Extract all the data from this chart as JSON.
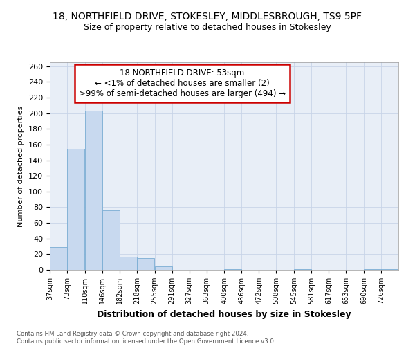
{
  "title_line1": "18, NORTHFIELD DRIVE, STOKESLEY, MIDDLESBROUGH, TS9 5PF",
  "title_line2": "Size of property relative to detached houses in Stokesley",
  "xlabel": "Distribution of detached houses by size in Stokesley",
  "ylabel": "Number of detached properties",
  "footnote": "Contains HM Land Registry data © Crown copyright and database right 2024.\nContains public sector information licensed under the Open Government Licence v3.0.",
  "annotation_line1": "18 NORTHFIELD DRIVE: 53sqm",
  "annotation_line2": "← <1% of detached houses are smaller (2)",
  "annotation_line3": ">99% of semi-detached houses are larger (494) →",
  "bar_color": "#c8d9ef",
  "bar_edge_color": "#7aadd4",
  "annotation_box_color": "#ffffff",
  "annotation_box_edge": "#cc0000",
  "bins": [
    37,
    73,
    110,
    146,
    182,
    218,
    255,
    291,
    327,
    363,
    400,
    436,
    472,
    508,
    545,
    581,
    617,
    653,
    690,
    726,
    762
  ],
  "counts": [
    29,
    155,
    203,
    76,
    17,
    15,
    4,
    0,
    0,
    0,
    1,
    0,
    0,
    0,
    1,
    0,
    0,
    0,
    1,
    1
  ],
  "ylim": [
    0,
    265
  ],
  "yticks": [
    0,
    20,
    40,
    60,
    80,
    100,
    120,
    140,
    160,
    180,
    200,
    220,
    240,
    260
  ],
  "background_color": "#ffffff",
  "plot_bg_color": "#e8eef7",
  "grid_color": "#c8d4e8"
}
